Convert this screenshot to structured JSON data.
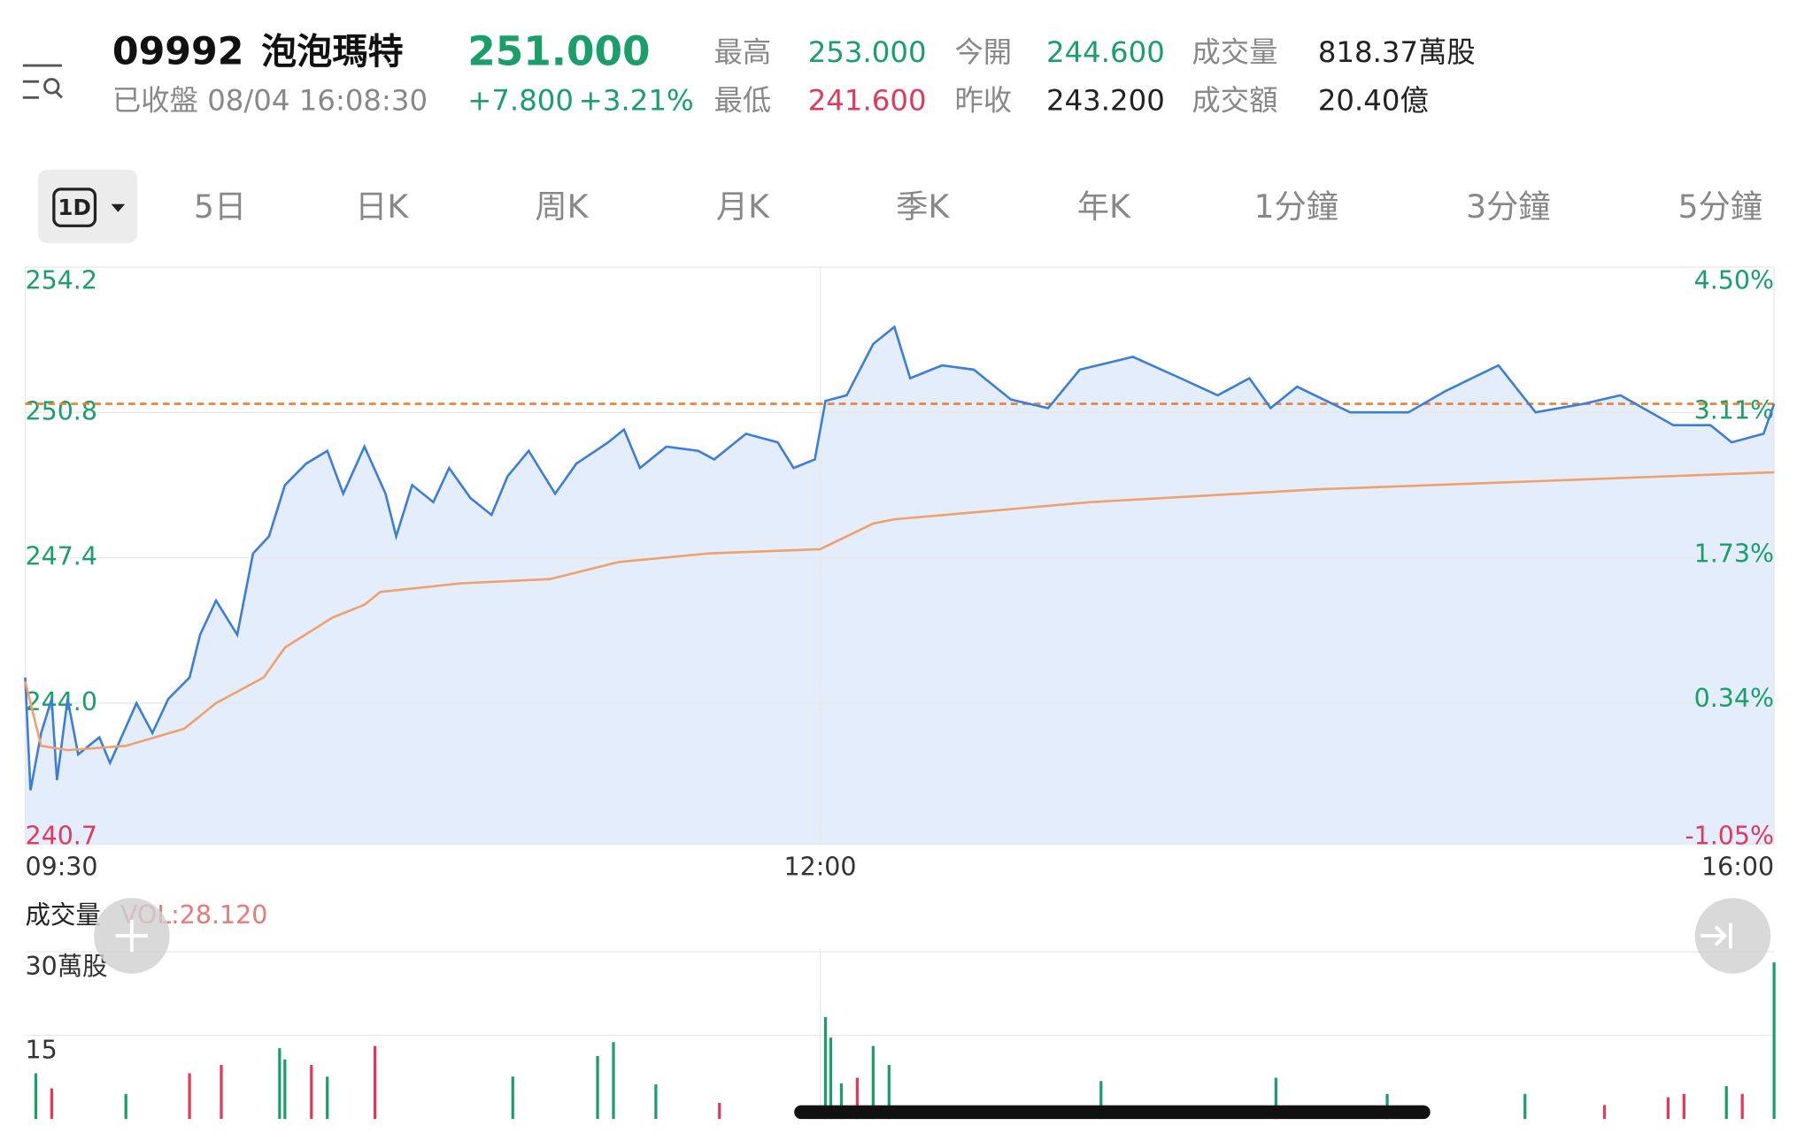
{
  "header": {
    "code": "09992",
    "name": "泡泡瑪特",
    "price": "251.000",
    "status": "已收盤 08/04 16:08:30",
    "change": "+7.800",
    "change_pct": "+3.21%"
  },
  "stats": [
    {
      "label": "最高",
      "value": "253.000",
      "color": "#1a9e6a"
    },
    {
      "label": "今開",
      "value": "244.600",
      "color": "#1a9e6a"
    },
    {
      "label": "成交量",
      "value": "818.37萬股",
      "color": "#222222"
    },
    {
      "label": "最低",
      "value": "241.600",
      "color": "#e0395c"
    },
    {
      "label": "昨收",
      "value": "243.200",
      "color": "#222222"
    },
    {
      "label": "成交額",
      "value": "20.40億",
      "color": "#222222"
    }
  ],
  "active_tab": "1D",
  "tabs": [
    "5日",
    "日K",
    "周K",
    "月K",
    "季K",
    "年K",
    "1分鐘",
    "3分鐘",
    "5分鐘"
  ],
  "chart_data": {
    "type": "line",
    "grid": true,
    "up_color": "#1a9e6a",
    "down_color": "#e0395c",
    "xlim": [
      0,
      330
    ],
    "xticks": [
      {
        "value": 0,
        "label": "09:30"
      },
      {
        "value": 150,
        "label": "12:00"
      },
      {
        "value": 330,
        "label": "16:00"
      }
    ],
    "ylim": [
      240.7,
      254.2
    ],
    "yticks": [
      240.7,
      {
        "value": 244,
        "label": "244.0"
      },
      247.4,
      250.8,
      254.2
    ],
    "y2lim": [
      -1.05,
      4.5
    ],
    "y2ticks": [
      {
        "value": -1.05,
        "label": "-1.05%"
      },
      {
        "value": 0.34,
        "label": "0.34%"
      },
      {
        "value": 1.73,
        "label": "1.73%"
      },
      {
        "value": 3.11,
        "label": "3.11%"
      },
      {
        "value": 4.5,
        "label": "4.50%"
      }
    ],
    "reference_line": 251.0,
    "reference_color": "#e8803a",
    "area_color": "#e4edfb",
    "series": [
      {
        "color": "#3b7dd8",
        "x": [
          0,
          1,
          3,
          5,
          6,
          8,
          10,
          14,
          16,
          21,
          24,
          27,
          31,
          33,
          36,
          40,
          43,
          46,
          49,
          53,
          57,
          60,
          64,
          68,
          70,
          73,
          77,
          80,
          84,
          88,
          91,
          95,
          100,
          104,
          110,
          113,
          116,
          121,
          127,
          130,
          136,
          142,
          145,
          149,
          151,
          155,
          160,
          164,
          167,
          173,
          179,
          186,
          193,
          199,
          209,
          218,
          225,
          231,
          235,
          240,
          250,
          261,
          268,
          278,
          285,
          294,
          301,
          311,
          318,
          322,
          328,
          330
        ],
        "values": [
          244.6,
          241.96,
          243.3,
          244.1,
          242.2,
          244.1,
          242.8,
          243.2,
          242.6,
          244.0,
          243.3,
          244.1,
          244.6,
          245.6,
          246.4,
          245.6,
          247.5,
          247.9,
          249.1,
          249.6,
          249.9,
          248.9,
          250.0,
          248.9,
          247.9,
          249.1,
          248.7,
          249.5,
          248.8,
          248.4,
          249.3,
          249.9,
          248.9,
          249.6,
          250.1,
          250.4,
          249.5,
          250.0,
          249.9,
          249.7,
          250.3,
          250.1,
          249.5,
          249.7,
          251.07,
          251.2,
          252.4,
          252.8,
          251.6,
          251.9,
          251.8,
          251.1,
          250.9,
          251.8,
          252.1,
          251.6,
          251.2,
          251.6,
          250.9,
          251.4,
          250.8,
          250.8,
          251.3,
          251.9,
          250.8,
          251.0,
          251.2,
          250.5,
          250.5,
          250.1,
          250.3,
          251.0
        ]
      },
      {
        "color": "#f0a06a",
        "x": [
          0,
          3,
          8,
          19,
          30,
          36,
          45,
          49,
          58,
          64,
          67,
          82,
          99,
          112,
          129,
          150,
          160,
          164,
          201,
          244,
          287,
          330
        ],
        "values": [
          244.5,
          243.0,
          242.9,
          243.0,
          243.4,
          244.0,
          244.6,
          245.3,
          246.0,
          246.3,
          246.6,
          246.8,
          246.9,
          247.3,
          247.5,
          247.6,
          248.2,
          248.3,
          248.7,
          249.0,
          249.2,
          249.4
        ]
      }
    ]
  },
  "volume_chart": {
    "type": "bar",
    "title": "成交量",
    "label": "VOL:28.120",
    "label_color": "#e87a7a",
    "xlim": [
      0,
      330
    ],
    "ylim": [
      0,
      30
    ],
    "yticks": [
      15,
      {
        "value": 30,
        "label": "30萬股"
      }
    ],
    "x": [
      2,
      5,
      19,
      31,
      37,
      48,
      49,
      54,
      57,
      66,
      92,
      108,
      111,
      119,
      131,
      151,
      152,
      154,
      157,
      160,
      163,
      203,
      236,
      257,
      283,
      298,
      310,
      313,
      321,
      324,
      330
    ],
    "values": [
      8.2,
      5.5,
      4.5,
      8.2,
      9.7,
      12.7,
      10.7,
      9.7,
      7.6,
      13.1,
      7.6,
      11.3,
      13.8,
      6.2,
      2.9,
      18.3,
      14.6,
      6.4,
      7.4,
      13.1,
      9.7,
      6.8,
      7.4,
      4.5,
      4.5,
      2.5,
      3.9,
      4.5,
      5.9,
      4.5,
      28.1
    ],
    "colors": [
      "#1a9e6a",
      "#e0395c",
      "#1a9e6a",
      "#e0395c",
      "#e0395c",
      "#1a9e6a",
      "#1a9e6a",
      "#e0395c",
      "#1a9e6a",
      "#e0395c",
      "#1a9e6a",
      "#1a9e6a",
      "#1a9e6a",
      "#1a9e6a",
      "#e0395c",
      "#1a9e6a",
      "#1a9e6a",
      "#1a9e6a",
      "#e0395c",
      "#1a9e6a",
      "#1a9e6a",
      "#1a9e6a",
      "#1a9e6a",
      "#1a9e6a",
      "#1a9e6a",
      "#e0395c",
      "#e0395c",
      "#e0395c",
      "#1a9e6a",
      "#e0395c",
      "#1a9e6a"
    ]
  }
}
